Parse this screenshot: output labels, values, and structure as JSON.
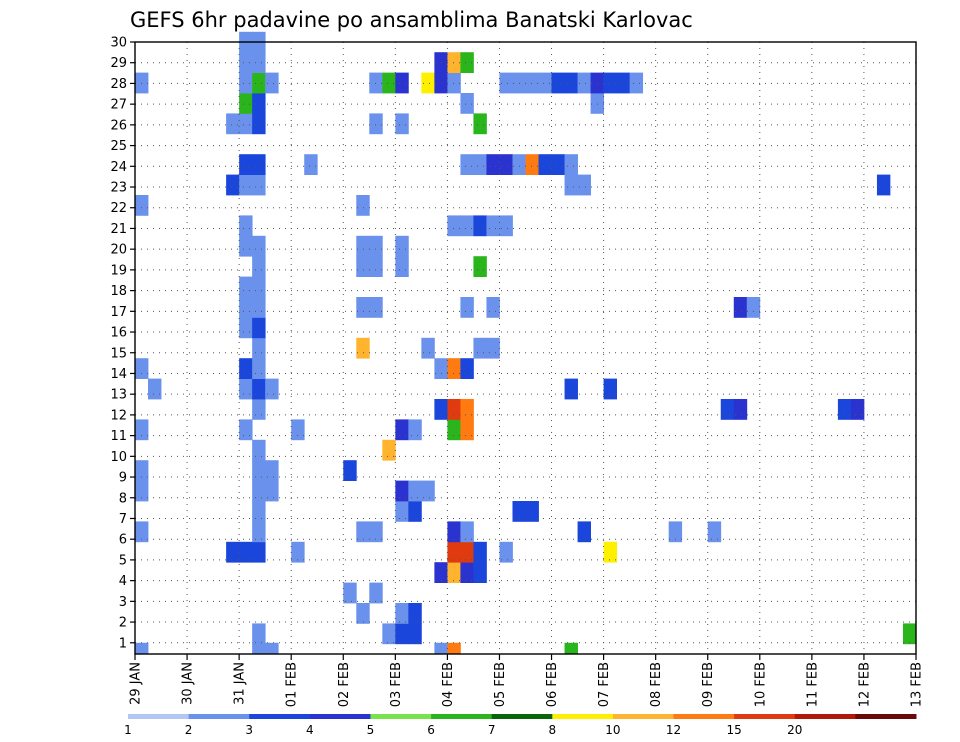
{
  "chart_data": {
    "type": "heatmap",
    "title": "GEFS 6hr padavine po ansamblima Banatski Karlovac",
    "xlabel": "",
    "ylabel": "",
    "x_ticks": [
      "29 JAN",
      "30 JAN",
      "31 JAN",
      "01 FEB",
      "02 FEB",
      "03 FEB",
      "04 FEB",
      "05 FEB",
      "06 FEB",
      "07 FEB",
      "08 FEB",
      "09 FEB",
      "10 FEB",
      "11 FEB",
      "12 FEB",
      "13 FEB"
    ],
    "y_ticks": [
      "1",
      "2",
      "3",
      "4",
      "5",
      "6",
      "7",
      "8",
      "9",
      "10",
      "11",
      "12",
      "13",
      "14",
      "15",
      "16",
      "17",
      "18",
      "19",
      "20",
      "21",
      "22",
      "23",
      "24",
      "25",
      "26",
      "27",
      "28",
      "29",
      "30"
    ],
    "x_range": [
      0,
      60
    ],
    "y_range": [
      0,
      30
    ],
    "step_unit": "6 hours",
    "grid": true,
    "colorbar": {
      "boundaries": [
        "1",
        "2",
        "3",
        "4",
        "5",
        "6",
        "7",
        "8",
        "10",
        "12",
        "15",
        "20"
      ],
      "colors": [
        "#b3c7f7",
        "#6a92ec",
        "#1a46dc",
        "#2a33d0",
        "#78e34f",
        "#2bb51d",
        "#0a640a",
        "#fff000",
        "#ffb32e",
        "#ff7a10",
        "#e03a10",
        "#b01808",
        "#6b0808"
      ]
    },
    "cells": [
      [
        0,
        0,
        1
      ],
      [
        9,
        0,
        1
      ],
      [
        10,
        0,
        1
      ],
      [
        23,
        0,
        1
      ],
      [
        24,
        0,
        9
      ],
      [
        33,
        0,
        5
      ],
      [
        9,
        1,
        1
      ],
      [
        19,
        1,
        1
      ],
      [
        20,
        1,
        2
      ],
      [
        21,
        1,
        2
      ],
      [
        59,
        1,
        5
      ],
      [
        17,
        2,
        1
      ],
      [
        20,
        2,
        1
      ],
      [
        21,
        2,
        2
      ],
      [
        16,
        3,
        1
      ],
      [
        18,
        3,
        1
      ],
      [
        23,
        4,
        3
      ],
      [
        24,
        4,
        8
      ],
      [
        25,
        4,
        3
      ],
      [
        26,
        4,
        2
      ],
      [
        7,
        5,
        2
      ],
      [
        8,
        5,
        2
      ],
      [
        9,
        5,
        2
      ],
      [
        12,
        5,
        1
      ],
      [
        24,
        5,
        10
      ],
      [
        25,
        5,
        10
      ],
      [
        26,
        5,
        2
      ],
      [
        28,
        5,
        1
      ],
      [
        36,
        5,
        7
      ],
      [
        0,
        6,
        1
      ],
      [
        9,
        6,
        1
      ],
      [
        17,
        6,
        1
      ],
      [
        18,
        6,
        1
      ],
      [
        24,
        6,
        3
      ],
      [
        25,
        6,
        1
      ],
      [
        34,
        6,
        2
      ],
      [
        41,
        6,
        1
      ],
      [
        44,
        6,
        1
      ],
      [
        9,
        7,
        1
      ],
      [
        20,
        7,
        1
      ],
      [
        21,
        7,
        2
      ],
      [
        29,
        7,
        2
      ],
      [
        30,
        7,
        2
      ],
      [
        0,
        8,
        1
      ],
      [
        9,
        8,
        1
      ],
      [
        10,
        8,
        1
      ],
      [
        20,
        8,
        3
      ],
      [
        21,
        8,
        1
      ],
      [
        22,
        8,
        1
      ],
      [
        0,
        9,
        1
      ],
      [
        9,
        9,
        1
      ],
      [
        10,
        9,
        1
      ],
      [
        16,
        9,
        2
      ],
      [
        9,
        10,
        1
      ],
      [
        19,
        10,
        8
      ],
      [
        0,
        11,
        1
      ],
      [
        8,
        11,
        1
      ],
      [
        12,
        11,
        1
      ],
      [
        20,
        11,
        3
      ],
      [
        21,
        11,
        1
      ],
      [
        24,
        11,
        5
      ],
      [
        25,
        11,
        9
      ],
      [
        9,
        12,
        1
      ],
      [
        23,
        12,
        2
      ],
      [
        24,
        12,
        10
      ],
      [
        25,
        12,
        9
      ],
      [
        45,
        12,
        2
      ],
      [
        46,
        12,
        3
      ],
      [
        54,
        12,
        2
      ],
      [
        55,
        12,
        3
      ],
      [
        1,
        13,
        1
      ],
      [
        8,
        13,
        1
      ],
      [
        9,
        13,
        2
      ],
      [
        10,
        13,
        1
      ],
      [
        33,
        13,
        2
      ],
      [
        36,
        13,
        2
      ],
      [
        0,
        14,
        1
      ],
      [
        8,
        14,
        2
      ],
      [
        9,
        14,
        1
      ],
      [
        23,
        14,
        1
      ],
      [
        24,
        14,
        9
      ],
      [
        25,
        14,
        2
      ],
      [
        9,
        15,
        1
      ],
      [
        17,
        15,
        8
      ],
      [
        22,
        15,
        1
      ],
      [
        26,
        15,
        1
      ],
      [
        27,
        15,
        1
      ],
      [
        8,
        16,
        1
      ],
      [
        9,
        16,
        2
      ],
      [
        8,
        17,
        1
      ],
      [
        9,
        17,
        1
      ],
      [
        17,
        17,
        1
      ],
      [
        18,
        17,
        1
      ],
      [
        25,
        17,
        1
      ],
      [
        27,
        17,
        1
      ],
      [
        46,
        17,
        3
      ],
      [
        47,
        17,
        1
      ],
      [
        8,
        18,
        1
      ],
      [
        9,
        18,
        1
      ],
      [
        9,
        19,
        1
      ],
      [
        17,
        19,
        1
      ],
      [
        18,
        19,
        1
      ],
      [
        20,
        19,
        1
      ],
      [
        26,
        19,
        5
      ],
      [
        8,
        20,
        1
      ],
      [
        9,
        20,
        1
      ],
      [
        17,
        20,
        1
      ],
      [
        18,
        20,
        1
      ],
      [
        20,
        20,
        1
      ],
      [
        8,
        21,
        1
      ],
      [
        24,
        21,
        1
      ],
      [
        25,
        21,
        1
      ],
      [
        26,
        21,
        2
      ],
      [
        27,
        21,
        1
      ],
      [
        28,
        21,
        1
      ],
      [
        0,
        22,
        1
      ],
      [
        17,
        22,
        1
      ],
      [
        7,
        23,
        2
      ],
      [
        8,
        23,
        1
      ],
      [
        9,
        23,
        1
      ],
      [
        33,
        23,
        1
      ],
      [
        34,
        23,
        1
      ],
      [
        57,
        23,
        2
      ],
      [
        8,
        24,
        2
      ],
      [
        9,
        24,
        2
      ],
      [
        13,
        24,
        1
      ],
      [
        25,
        24,
        1
      ],
      [
        26,
        24,
        1
      ],
      [
        27,
        24,
        3
      ],
      [
        28,
        24,
        3
      ],
      [
        29,
        24,
        1
      ],
      [
        30,
        24,
        9
      ],
      [
        31,
        24,
        2
      ],
      [
        32,
        24,
        2
      ],
      [
        33,
        24,
        1
      ],
      [
        7,
        26,
        1
      ],
      [
        8,
        26,
        1
      ],
      [
        9,
        26,
        2
      ],
      [
        18,
        26,
        1
      ],
      [
        20,
        26,
        1
      ],
      [
        26,
        26,
        5
      ],
      [
        8,
        27,
        5
      ],
      [
        9,
        27,
        2
      ],
      [
        25,
        27,
        1
      ],
      [
        35,
        27,
        1
      ],
      [
        0,
        28,
        1
      ],
      [
        8,
        28,
        1
      ],
      [
        9,
        28,
        5
      ],
      [
        10,
        28,
        1
      ],
      [
        18,
        28,
        1
      ],
      [
        19,
        28,
        5
      ],
      [
        20,
        28,
        3
      ],
      [
        22,
        28,
        7
      ],
      [
        23,
        28,
        3
      ],
      [
        24,
        28,
        1
      ],
      [
        28,
        28,
        1
      ],
      [
        29,
        28,
        1
      ],
      [
        30,
        28,
        1
      ],
      [
        31,
        28,
        1
      ],
      [
        32,
        28,
        2
      ],
      [
        33,
        28,
        2
      ],
      [
        34,
        28,
        1
      ],
      [
        35,
        28,
        3
      ],
      [
        36,
        28,
        2
      ],
      [
        37,
        28,
        2
      ],
      [
        38,
        28,
        1
      ],
      [
        8,
        29,
        1
      ],
      [
        9,
        29,
        1
      ],
      [
        23,
        29,
        3
      ],
      [
        24,
        29,
        8
      ],
      [
        25,
        29,
        5
      ],
      [
        8,
        30,
        1
      ],
      [
        9,
        30,
        1
      ]
    ]
  }
}
